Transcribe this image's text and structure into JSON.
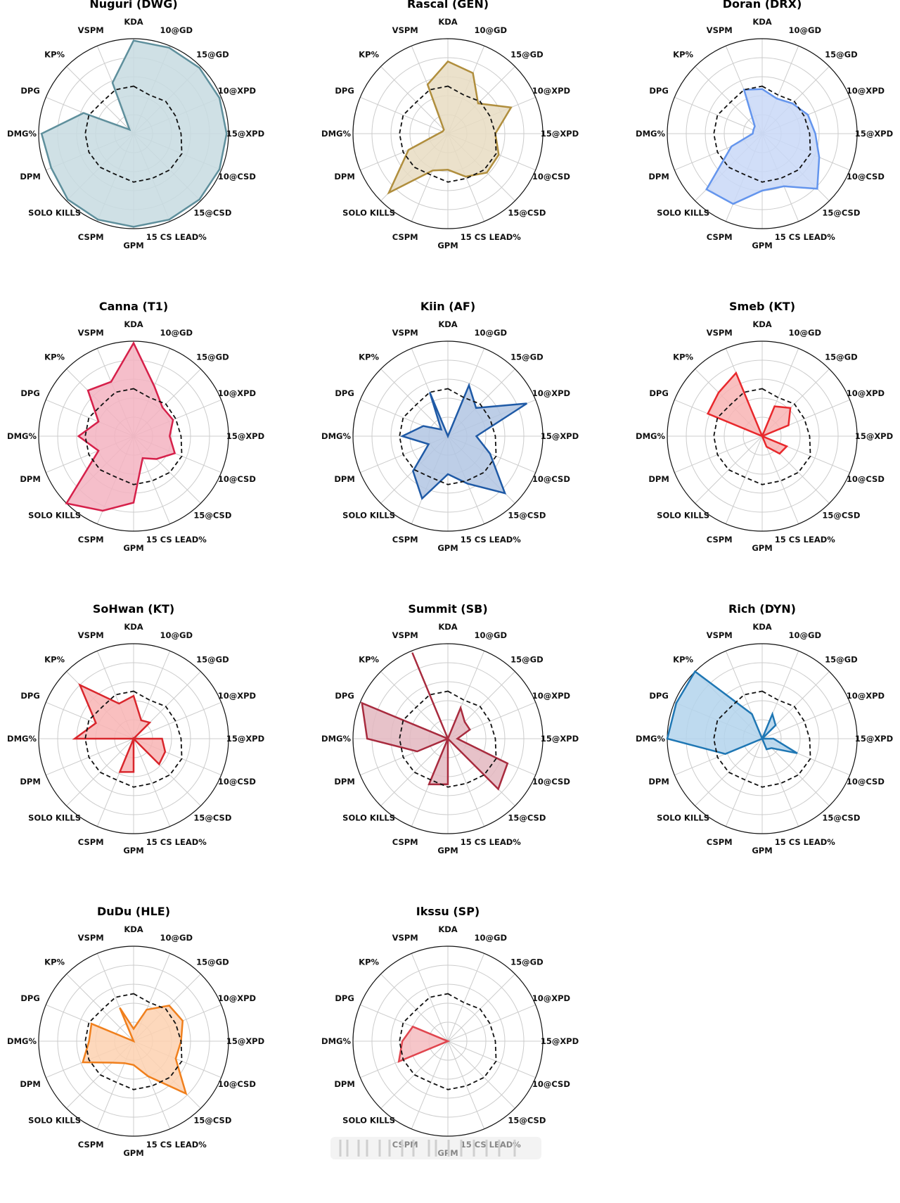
{
  "axes": [
    "KDA",
    "10@GD",
    "15@GD",
    "10@XPD",
    "15@XPD",
    "10@CSD",
    "15@CSD",
    "15 CS LEAD%",
    "GPM",
    "CSPM",
    "SOLO KILLS",
    "DPM",
    "DMG%",
    "DPG",
    "KP%",
    "VSPM"
  ],
  "chart_data": [
    {
      "type": "radar",
      "title": "Nuguri (DWG)",
      "color": "#5e8f9c",
      "fill": "#c7dae0",
      "rlim": [
        0,
        1
      ],
      "values": [
        0.98,
        0.98,
        0.98,
        0.98,
        0.98,
        0.98,
        0.98,
        0.98,
        0.98,
        0.98,
        0.98,
        0.94,
        0.97,
        0.57,
        0.06,
        0.58
      ],
      "baseline": [
        0.5,
        0.44,
        0.48,
        0.48,
        0.5,
        0.55,
        0.54,
        0.51,
        0.51,
        0.47,
        0.5,
        0.51,
        0.51,
        0.51,
        0.47,
        0.5
      ]
    },
    {
      "type": "radar",
      "title": "Rascal (GEN)",
      "color": "#b08e3d",
      "fill": "#e7dcc2",
      "rlim": [
        0,
        1
      ],
      "values": [
        0.76,
        0.69,
        0.45,
        0.72,
        0.5,
        0.58,
        0.58,
        0.49,
        0.38,
        0.42,
        0.88,
        0.45,
        0.1,
        0.06,
        0.06,
        0.56
      ],
      "baseline": [
        0.5,
        0.44,
        0.48,
        0.48,
        0.5,
        0.55,
        0.54,
        0.51,
        0.51,
        0.47,
        0.5,
        0.51,
        0.51,
        0.51,
        0.47,
        0.5
      ]
    },
    {
      "type": "radar",
      "title": "Doran (DRX)",
      "color": "#6495ed",
      "fill": "#c9d8f7",
      "rlim": [
        0,
        1
      ],
      "values": [
        0.47,
        0.4,
        0.45,
        0.52,
        0.56,
        0.65,
        0.82,
        0.6,
        0.6,
        0.8,
        0.83,
        0.35,
        0.1,
        0.1,
        0.11,
        0.5
      ],
      "baseline": [
        0.5,
        0.44,
        0.48,
        0.48,
        0.5,
        0.55,
        0.54,
        0.51,
        0.51,
        0.47,
        0.5,
        0.51,
        0.51,
        0.51,
        0.47,
        0.5
      ]
    },
    {
      "type": "radar",
      "title": "Canna (T1)",
      "color": "#d6204a",
      "fill": "#f3b3c1",
      "rlim": [
        0,
        1
      ],
      "values": [
        0.98,
        0.57,
        0.43,
        0.45,
        0.38,
        0.47,
        0.34,
        0.25,
        0.7,
        0.85,
        1.0,
        0.4,
        0.58,
        0.4,
        0.68,
        0.62
      ],
      "baseline": [
        0.5,
        0.44,
        0.48,
        0.48,
        0.5,
        0.55,
        0.54,
        0.51,
        0.51,
        0.47,
        0.5,
        0.51,
        0.51,
        0.51,
        0.47,
        0.5
      ]
    },
    {
      "type": "radar",
      "title": "Kiin (AF)",
      "color": "#1f5aa6",
      "fill": "#b2c6e3",
      "rlim": [
        0,
        1
      ],
      "values": [
        0.0,
        0.58,
        0.42,
        0.9,
        0.3,
        0.48,
        0.85,
        0.54,
        0.4,
        0.71,
        0.52,
        0.22,
        0.48,
        0.28,
        0.1,
        0.5
      ],
      "baseline": [
        0.5,
        0.44,
        0.48,
        0.48,
        0.5,
        0.55,
        0.54,
        0.51,
        0.51,
        0.47,
        0.5,
        0.51,
        0.51,
        0.51,
        0.47,
        0.5
      ]
    },
    {
      "type": "radar",
      "title": "Smeb (KT)",
      "color": "#e8282c",
      "fill": "#f8b4b4",
      "rlim": [
        0,
        1
      ],
      "values": [
        0.0,
        0.34,
        0.42,
        0.3,
        0.0,
        0.28,
        0.26,
        0.12,
        0.0,
        0.0,
        0.0,
        0.0,
        0.0,
        0.62,
        0.65,
        0.72
      ],
      "baseline": [
        0.5,
        0.44,
        0.48,
        0.48,
        0.5,
        0.55,
        0.54,
        0.51,
        0.51,
        0.47,
        0.5,
        0.51,
        0.51,
        0.51,
        0.47,
        0.5
      ]
    },
    {
      "type": "radar",
      "title": "SoHwan (KT)",
      "color": "#d9262c",
      "fill": "#f8b4b4",
      "rlim": [
        0,
        1
      ],
      "values": [
        0.45,
        0.21,
        0.24,
        0.0,
        0.3,
        0.36,
        0.38,
        0.0,
        0.35,
        0.38,
        0.0,
        0.0,
        0.62,
        0.43,
        0.8,
        0.4
      ],
      "baseline": [
        0.5,
        0.44,
        0.48,
        0.48,
        0.5,
        0.55,
        0.54,
        0.51,
        0.51,
        0.47,
        0.5,
        0.51,
        0.51,
        0.51,
        0.47,
        0.5
      ]
    },
    {
      "type": "radar",
      "title": "Summit (SB)",
      "color": "#a82b3e",
      "fill": "#e3b7c0",
      "rlim": [
        0,
        1
      ],
      "values": [
        0.0,
        0.35,
        0.25,
        0.25,
        0.1,
        0.68,
        0.75,
        0.0,
        0.48,
        0.52,
        0.0,
        0.35,
        0.85,
        0.98,
        0.0,
        0.98
      ],
      "baseline": [
        0.5,
        0.44,
        0.48,
        0.48,
        0.5,
        0.55,
        0.54,
        0.51,
        0.51,
        0.47,
        0.5,
        0.51,
        0.51,
        0.51,
        0.47,
        0.5
      ]
    },
    {
      "type": "radar",
      "title": "Rich (DYN)",
      "color": "#1f77b4",
      "fill": "#b3d4ec",
      "rlim": [
        0,
        1
      ],
      "values": [
        0.0,
        0.28,
        0.2,
        0.0,
        0.12,
        0.4,
        0.14,
        0.12,
        0.0,
        0.0,
        0.0,
        0.42,
        1.0,
        0.98,
        1.0,
        0.28
      ],
      "baseline": [
        0.5,
        0.44,
        0.48,
        0.48,
        0.5,
        0.55,
        0.54,
        0.51,
        0.51,
        0.47,
        0.5,
        0.51,
        0.51,
        0.51,
        0.47,
        0.5
      ]
    },
    {
      "type": "radar",
      "title": "DuDu (HLE)",
      "color": "#f07f1c",
      "fill": "#fdd1b0",
      "rlim": [
        0,
        1
      ],
      "values": [
        0.13,
        0.36,
        0.53,
        0.56,
        0.5,
        0.48,
        0.78,
        0.4,
        0.25,
        0.25,
        0.32,
        0.58,
        0.47,
        0.48,
        0.0,
        0.38
      ],
      "baseline": [
        0.5,
        0.44,
        0.48,
        0.48,
        0.5,
        0.55,
        0.54,
        0.51,
        0.51,
        0.47,
        0.5,
        0.51,
        0.51,
        0.51,
        0.47,
        0.5
      ]
    },
    {
      "type": "radar",
      "title": "Ikssu (SP)",
      "color": "#e0454e",
      "fill": "#f5bcbf",
      "rlim": [
        0,
        1
      ],
      "values": [
        0.0,
        0.0,
        0.0,
        0.0,
        0.0,
        0.0,
        0.0,
        0.0,
        0.0,
        0.0,
        0.0,
        0.56,
        0.48,
        0.4,
        0.0,
        0.0
      ],
      "baseline": [
        0.5,
        0.44,
        0.48,
        0.48,
        0.5,
        0.55,
        0.54,
        0.51,
        0.51,
        0.47,
        0.5,
        0.51,
        0.51,
        0.51,
        0.47,
        0.5
      ]
    }
  ]
}
